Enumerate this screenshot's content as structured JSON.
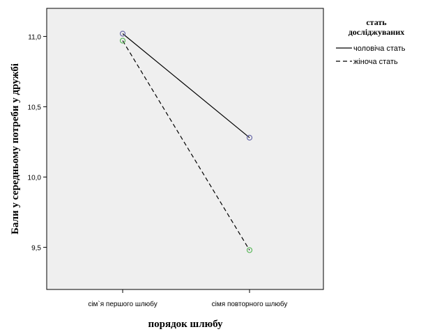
{
  "chart_data": {
    "type": "line",
    "categories": [
      "сім`я першого шлюбу",
      "сімя повторного шлюбу"
    ],
    "series": [
      {
        "name": "чоловіча стать",
        "values": [
          11.02,
          10.28
        ],
        "color": "#000000",
        "marker_color": "#6a6aa8",
        "dash": "solid"
      },
      {
        "name": "жіноча стать",
        "values": [
          10.97,
          9.48
        ],
        "color": "#000000",
        "marker_color": "#5cb85c",
        "dash": "dashed"
      }
    ],
    "xlabel": "порядок шлюбу",
    "ylabel": "Бали у середньому потреби у дружбі",
    "ylim": [
      9.2,
      11.2
    ],
    "yticks": [
      "9,5",
      "10,0",
      "10,5",
      "11,0"
    ],
    "ytick_values": [
      9.5,
      10.0,
      10.5,
      11.0
    ],
    "legend_title_line1": "стать",
    "legend_title_line2": "досліджуваних",
    "legend_position": "right",
    "plot_background": "#efefef",
    "grid": false
  }
}
